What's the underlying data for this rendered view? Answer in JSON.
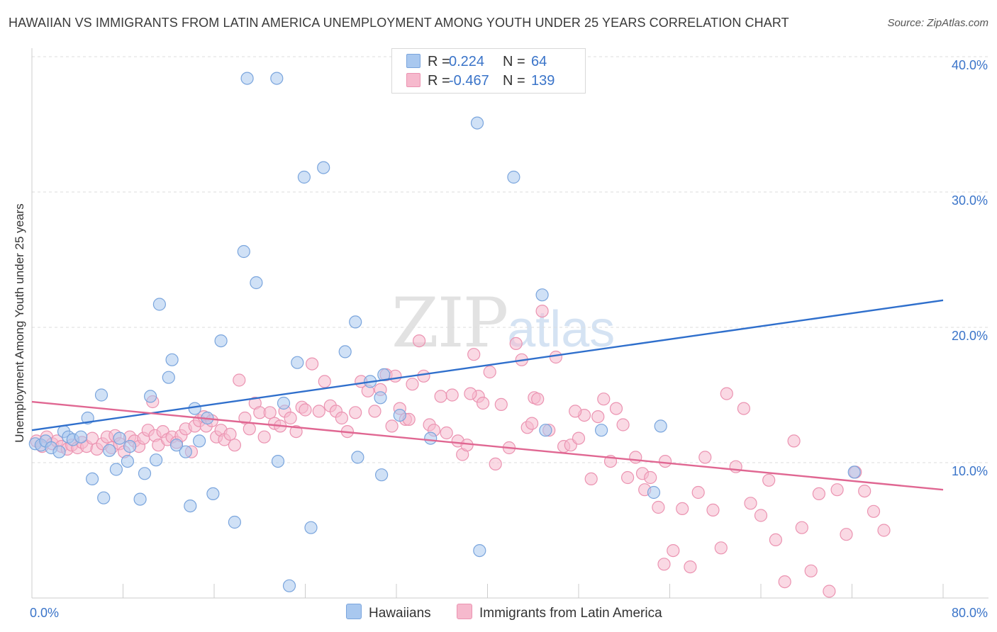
{
  "title": "HAWAIIAN VS IMMIGRANTS FROM LATIN AMERICA UNEMPLOYMENT AMONG YOUTH UNDER 25 YEARS CORRELATION CHART",
  "source": "Source: ZipAtlas.com",
  "watermark": {
    "zip": "ZIP",
    "atlas": "atlas"
  },
  "legend": {
    "rows": [
      {
        "r_label": "R =",
        "r_value": "0.224",
        "n_label": "N =",
        "n_value": "64"
      },
      {
        "r_label": "R =",
        "r_value": "-0.467",
        "n_label": "N =",
        "n_value": "139"
      }
    ]
  },
  "bottom_legend": [
    "Hawaiians",
    "Immigrants from Latin America"
  ],
  "colors": {
    "hawaiians_fill": "#a9c8ef",
    "hawaiians_stroke": "#7aa5dd",
    "hawaiians_line": "#2f6fcc",
    "latin_fill": "#f6b9cd",
    "latin_stroke": "#eb93b1",
    "latin_line": "#e06792",
    "tick_text": "#3a74c9",
    "grid": "#dddddd"
  },
  "chart_data": {
    "type": "scatter",
    "title": "HAWAIIAN VS IMMIGRANTS FROM LATIN AMERICA UNEMPLOYMENT AMONG YOUTH UNDER 25 YEARS CORRELATION CHART",
    "xlabel": "",
    "ylabel": "Unemployment Among Youth under 25 years",
    "xlim": [
      0,
      80
    ],
    "ylim": [
      0,
      40
    ],
    "x_tick_labels": [
      "0.0%",
      "80.0%"
    ],
    "y_ticks": [
      10,
      20,
      30,
      40
    ],
    "y_tick_labels": [
      "10.0%",
      "20.0%",
      "30.0%",
      "40.0%"
    ],
    "grid": true,
    "series": [
      {
        "name": "Hawaiians",
        "r": 0.224,
        "n": 64,
        "trend": {
          "x": [
            0,
            80
          ],
          "y": [
            12.4,
            22.0
          ]
        },
        "points": [
          [
            0.3,
            11.4
          ],
          [
            0.8,
            11.3
          ],
          [
            1.2,
            11.6
          ],
          [
            1.7,
            11.1
          ],
          [
            2.4,
            10.8
          ],
          [
            2.8,
            12.3
          ],
          [
            3.2,
            11.9
          ],
          [
            3.6,
            11.7
          ],
          [
            4.3,
            11.9
          ],
          [
            4.9,
            13.3
          ],
          [
            5.3,
            8.8
          ],
          [
            6.1,
            15.0
          ],
          [
            6.3,
            7.4
          ],
          [
            6.8,
            10.9
          ],
          [
            7.4,
            9.5
          ],
          [
            7.7,
            11.8
          ],
          [
            8.4,
            10.1
          ],
          [
            8.6,
            11.2
          ],
          [
            9.5,
            7.3
          ],
          [
            9.9,
            9.2
          ],
          [
            10.4,
            14.9
          ],
          [
            10.9,
            10.2
          ],
          [
            11.2,
            21.7
          ],
          [
            12.0,
            16.3
          ],
          [
            12.3,
            17.6
          ],
          [
            12.7,
            11.3
          ],
          [
            13.5,
            10.8
          ],
          [
            13.9,
            6.8
          ],
          [
            14.3,
            14.0
          ],
          [
            14.7,
            11.6
          ],
          [
            15.4,
            13.3
          ],
          [
            15.9,
            7.7
          ],
          [
            16.6,
            19.0
          ],
          [
            17.8,
            5.6
          ],
          [
            18.6,
            25.6
          ],
          [
            18.9,
            38.4
          ],
          [
            19.7,
            23.3
          ],
          [
            21.5,
            38.4
          ],
          [
            21.6,
            10.1
          ],
          [
            22.1,
            14.4
          ],
          [
            22.6,
            0.9
          ],
          [
            23.3,
            17.4
          ],
          [
            23.9,
            31.1
          ],
          [
            24.5,
            5.2
          ],
          [
            25.6,
            31.8
          ],
          [
            27.5,
            18.2
          ],
          [
            28.4,
            20.4
          ],
          [
            28.6,
            10.4
          ],
          [
            29.7,
            16.0
          ],
          [
            30.6,
            14.8
          ],
          [
            30.7,
            9.1
          ],
          [
            30.9,
            16.5
          ],
          [
            32.3,
            13.5
          ],
          [
            35.0,
            11.8
          ],
          [
            39.1,
            35.1
          ],
          [
            39.3,
            3.5
          ],
          [
            42.3,
            31.1
          ],
          [
            44.8,
            22.4
          ],
          [
            45.1,
            12.4
          ],
          [
            47.2,
            38.0
          ],
          [
            50.0,
            12.4
          ],
          [
            54.6,
            7.8
          ],
          [
            55.2,
            12.7
          ],
          [
            72.2,
            9.3
          ]
        ]
      },
      {
        "name": "Immigrants from Latin America",
        "r": -0.467,
        "n": 139,
        "trend": {
          "x": [
            0,
            80
          ],
          "y": [
            14.5,
            8.0
          ]
        },
        "points": [
          [
            0.4,
            11.6
          ],
          [
            0.9,
            11.2
          ],
          [
            1.3,
            11.9
          ],
          [
            1.8,
            11.4
          ],
          [
            2.2,
            11.6
          ],
          [
            2.6,
            11.2
          ],
          [
            3.1,
            11.0
          ],
          [
            3.5,
            11.3
          ],
          [
            4.0,
            11.1
          ],
          [
            4.4,
            11.5
          ],
          [
            4.8,
            11.2
          ],
          [
            5.3,
            11.8
          ],
          [
            5.7,
            11.0
          ],
          [
            6.2,
            11.4
          ],
          [
            6.6,
            11.9
          ],
          [
            7.0,
            11.1
          ],
          [
            7.3,
            12.0
          ],
          [
            7.7,
            11.4
          ],
          [
            8.1,
            10.8
          ],
          [
            8.6,
            11.9
          ],
          [
            9.0,
            11.6
          ],
          [
            9.4,
            11.2
          ],
          [
            9.8,
            11.8
          ],
          [
            10.2,
            12.4
          ],
          [
            10.6,
            14.5
          ],
          [
            10.8,
            12.0
          ],
          [
            11.1,
            11.3
          ],
          [
            11.5,
            12.3
          ],
          [
            11.9,
            11.7
          ],
          [
            12.3,
            11.9
          ],
          [
            12.7,
            11.5
          ],
          [
            13.1,
            12.0
          ],
          [
            13.5,
            12.5
          ],
          [
            14.0,
            10.8
          ],
          [
            14.3,
            12.7
          ],
          [
            14.7,
            13.1
          ],
          [
            15.1,
            13.4
          ],
          [
            15.3,
            12.7
          ],
          [
            15.8,
            13.1
          ],
          [
            16.2,
            11.9
          ],
          [
            16.6,
            12.4
          ],
          [
            16.9,
            11.7
          ],
          [
            17.4,
            12.1
          ],
          [
            17.8,
            11.3
          ],
          [
            18.2,
            16.1
          ],
          [
            18.7,
            13.3
          ],
          [
            19.1,
            12.5
          ],
          [
            19.6,
            14.4
          ],
          [
            20.0,
            13.7
          ],
          [
            20.4,
            11.9
          ],
          [
            20.9,
            13.7
          ],
          [
            21.3,
            12.9
          ],
          [
            21.8,
            12.7
          ],
          [
            22.2,
            13.8
          ],
          [
            22.7,
            13.3
          ],
          [
            23.2,
            12.3
          ],
          [
            23.7,
            14.1
          ],
          [
            24.0,
            13.9
          ],
          [
            24.6,
            17.3
          ],
          [
            25.2,
            13.8
          ],
          [
            25.7,
            16.0
          ],
          [
            26.2,
            14.2
          ],
          [
            26.7,
            13.8
          ],
          [
            27.2,
            13.3
          ],
          [
            27.7,
            12.3
          ],
          [
            28.4,
            13.7
          ],
          [
            28.9,
            16.0
          ],
          [
            29.5,
            15.3
          ],
          [
            30.1,
            13.8
          ],
          [
            30.6,
            15.4
          ],
          [
            31.1,
            16.5
          ],
          [
            31.6,
            12.7
          ],
          [
            31.9,
            16.4
          ],
          [
            32.3,
            14.0
          ],
          [
            32.8,
            13.2
          ],
          [
            33.4,
            15.8
          ],
          [
            34.0,
            19.0
          ],
          [
            34.4,
            16.4
          ],
          [
            34.9,
            12.8
          ],
          [
            35.3,
            12.4
          ],
          [
            35.9,
            14.9
          ],
          [
            36.4,
            12.2
          ],
          [
            36.9,
            15.0
          ],
          [
            37.4,
            11.6
          ],
          [
            37.8,
            10.6
          ],
          [
            38.2,
            11.3
          ],
          [
            38.8,
            18.0
          ],
          [
            39.2,
            14.9
          ],
          [
            39.6,
            14.4
          ],
          [
            40.2,
            16.7
          ],
          [
            40.7,
            9.9
          ],
          [
            41.2,
            14.3
          ],
          [
            41.9,
            11.1
          ],
          [
            42.5,
            18.8
          ],
          [
            43.0,
            17.6
          ],
          [
            43.5,
            12.6
          ],
          [
            44.1,
            14.8
          ],
          [
            44.4,
            14.7
          ],
          [
            44.8,
            21.2
          ],
          [
            45.4,
            12.4
          ],
          [
            46.0,
            17.8
          ],
          [
            46.7,
            11.2
          ],
          [
            47.3,
            11.3
          ],
          [
            48.0,
            11.8
          ],
          [
            48.5,
            13.5
          ],
          [
            49.1,
            8.8
          ],
          [
            49.7,
            13.4
          ],
          [
            50.2,
            14.7
          ],
          [
            50.8,
            10.1
          ],
          [
            51.3,
            14.0
          ],
          [
            51.9,
            12.8
          ],
          [
            52.3,
            8.9
          ],
          [
            53.0,
            10.4
          ],
          [
            53.6,
            9.2
          ],
          [
            54.3,
            8.9
          ],
          [
            55.0,
            6.7
          ],
          [
            55.6,
            10.1
          ],
          [
            56.3,
            3.5
          ],
          [
            57.1,
            6.6
          ],
          [
            57.8,
            2.3
          ],
          [
            58.5,
            7.8
          ],
          [
            59.1,
            10.4
          ],
          [
            59.8,
            6.5
          ],
          [
            60.5,
            3.7
          ],
          [
            61.0,
            15.1
          ],
          [
            61.8,
            9.7
          ],
          [
            62.5,
            14.0
          ],
          [
            63.1,
            7.0
          ],
          [
            64.0,
            6.1
          ],
          [
            64.7,
            8.7
          ],
          [
            65.3,
            4.3
          ],
          [
            66.1,
            1.2
          ],
          [
            66.9,
            11.6
          ],
          [
            67.6,
            5.2
          ],
          [
            68.4,
            2.0
          ],
          [
            69.1,
            7.7
          ],
          [
            70.0,
            0.5
          ],
          [
            70.7,
            8.0
          ],
          [
            71.5,
            4.7
          ],
          [
            72.3,
            9.3
          ],
          [
            73.1,
            7.9
          ],
          [
            73.9,
            6.4
          ],
          [
            74.8,
            5.0
          ],
          [
            55.5,
            2.5
          ],
          [
            53.8,
            8.0
          ],
          [
            47.7,
            13.8
          ],
          [
            33.1,
            13.2
          ],
          [
            38.5,
            15.1
          ],
          [
            43.9,
            12.9
          ]
        ]
      }
    ]
  }
}
